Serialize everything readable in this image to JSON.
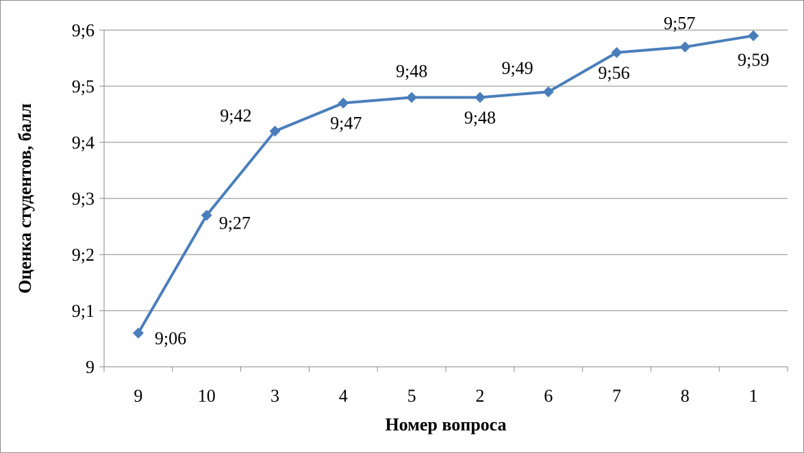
{
  "chart_data": {
    "type": "line",
    "xlabel": "Номер вопроса",
    "ylabel": "Оценка студентов, балл",
    "categories": [
      "9",
      "10",
      "3",
      "4",
      "5",
      "2",
      "6",
      "7",
      "8",
      "1"
    ],
    "series": [
      {
        "values": [
          9.06,
          9.27,
          9.42,
          9.47,
          9.48,
          9.48,
          9.49,
          9.56,
          9.57,
          9.59
        ],
        "labels": [
          "9;06",
          "9;27",
          "9;42",
          "9;47",
          "9;48",
          "9;48",
          "9;49",
          "9;56",
          "9;57",
          "9;59"
        ]
      }
    ],
    "ylim": [
      9,
      9.6
    ],
    "yticks": [
      {
        "value": 9.0,
        "label": "9"
      },
      {
        "value": 9.1,
        "label": "9;1"
      },
      {
        "value": 9.2,
        "label": "9;2"
      },
      {
        "value": 9.3,
        "label": "9;3"
      },
      {
        "value": 9.4,
        "label": "9;4"
      },
      {
        "value": 9.5,
        "label": "9;5"
      },
      {
        "value": 9.6,
        "label": "9;6"
      }
    ],
    "grid": "horizontal",
    "legend": "none",
    "line_color": "#4a7ebb",
    "marker": "diamond"
  }
}
